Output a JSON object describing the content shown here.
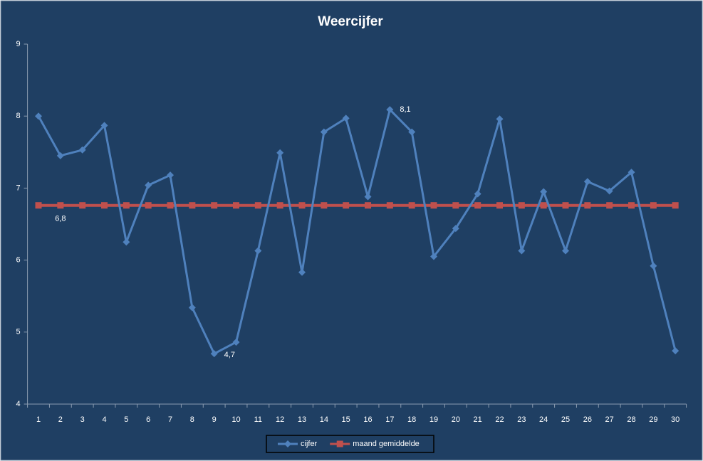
{
  "chart_data": {
    "type": "line",
    "title": "Weercijfer",
    "categories": [
      "1",
      "2",
      "3",
      "4",
      "5",
      "6",
      "7",
      "8",
      "9",
      "10",
      "11",
      "12",
      "13",
      "14",
      "15",
      "16",
      "17",
      "18",
      "19",
      "20",
      "21",
      "22",
      "23",
      "24",
      "25",
      "26",
      "27",
      "28",
      "29",
      "30"
    ],
    "series": [
      {
        "name": "cijfer",
        "color": "#4f81bd",
        "marker": "diamond",
        "values": [
          8.0,
          7.45,
          7.53,
          7.87,
          6.25,
          7.04,
          7.18,
          5.34,
          4.7,
          4.86,
          6.13,
          7.49,
          5.83,
          7.78,
          7.97,
          6.88,
          8.09,
          7.78,
          6.05,
          6.44,
          6.92,
          7.96,
          6.13,
          6.95,
          6.13,
          7.09,
          6.96,
          7.22,
          5.92,
          4.74
        ],
        "value_labels": [
          null,
          null,
          null,
          null,
          null,
          null,
          null,
          null,
          "4,7",
          null,
          null,
          null,
          null,
          null,
          null,
          null,
          "8,1",
          null,
          null,
          null,
          null,
          null,
          null,
          null,
          null,
          null,
          null,
          null,
          null,
          null
        ]
      },
      {
        "name": "maand gemiddelde",
        "color": "#c0504d",
        "marker": "square",
        "values": [
          6.76,
          6.76,
          6.76,
          6.76,
          6.76,
          6.76,
          6.76,
          6.76,
          6.76,
          6.76,
          6.76,
          6.76,
          6.76,
          6.76,
          6.76,
          6.76,
          6.76,
          6.76,
          6.76,
          6.76,
          6.76,
          6.76,
          6.76,
          6.76,
          6.76,
          6.76,
          6.76,
          6.76,
          6.76,
          6.76
        ],
        "value_labels": [
          null,
          "6,8",
          null,
          null,
          null,
          null,
          null,
          null,
          null,
          null,
          null,
          null,
          null,
          null,
          null,
          null,
          null,
          null,
          null,
          null,
          null,
          null,
          null,
          null,
          null,
          null,
          null,
          null,
          null,
          null
        ]
      }
    ],
    "ylim": [
      4,
      9
    ],
    "yticks": [
      4,
      5,
      6,
      7,
      8,
      9
    ],
    "grid": false,
    "legend": "bottom"
  }
}
